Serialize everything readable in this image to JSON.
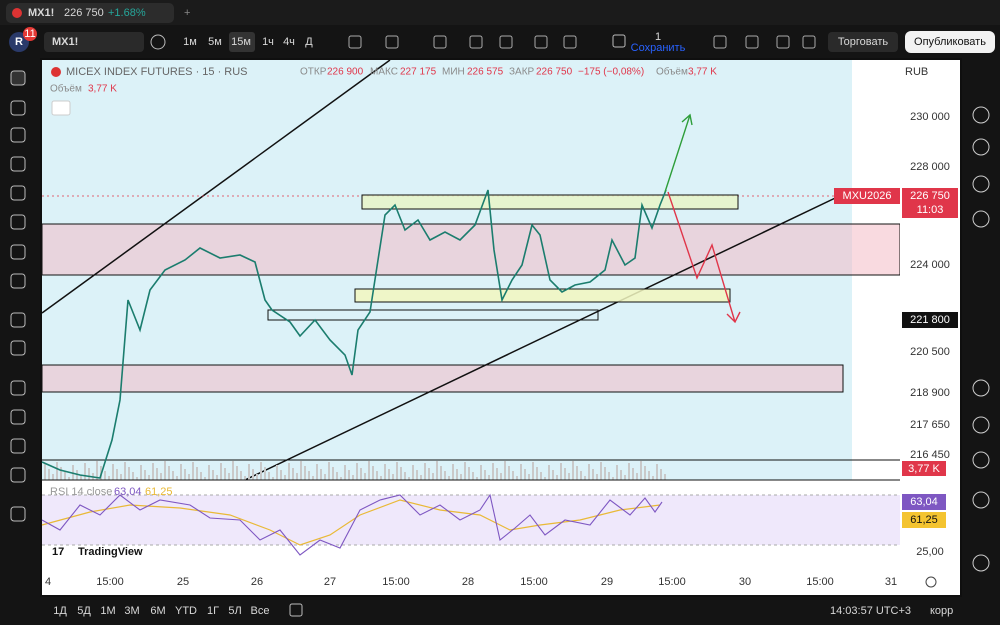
{
  "browser_tab": {
    "symbol": "MX1!",
    "price": "226 750",
    "change": "+1.68%"
  },
  "toolbar": {
    "avatar": "R",
    "badge": "11",
    "symbol": "MX1!",
    "intervals": [
      "1м",
      "5м",
      "15м",
      "1ч",
      "4ч",
      "Д"
    ],
    "layout_number": "1",
    "save": "Сохранить",
    "trade": "Торговать",
    "publish": "Опубликовать"
  },
  "legend": {
    "title": "MICEX INDEX FUTURES · 15 · RUS",
    "open_label": "ОТКР",
    "open": "226 900",
    "high_label": "МАКС",
    "high": "227 175",
    "low_label": "МИН",
    "low": "226 575",
    "close_label": "ЗАКР",
    "close": "226 750",
    "change": "−175 (−0,08%)",
    "volume_label": "Объём",
    "volume": "3,77 K",
    "volume_row_label": "Объём",
    "volume_row": "3,77 K"
  },
  "price_axis": {
    "currency": "RUB",
    "labels": [
      "230 000",
      "228 000",
      "224 000",
      "220 500",
      "218 900",
      "217 650",
      "216 450",
      "25,00"
    ],
    "last_price": "226 750",
    "countdown": "11:03",
    "marker_price": "221 800",
    "volume": "3,77 K",
    "rsi": "63,04",
    "rsi_ma": "61,25",
    "symbol_tag": "MXU2026"
  },
  "rsi": {
    "label": "RSI 14 close",
    "value": "63,04",
    "ma": "61,25"
  },
  "watermark": "TradingView",
  "time_axis": [
    "4",
    "15:00",
    "25",
    "26",
    "27",
    "15:00",
    "28",
    "15:00",
    "29",
    "15:00",
    "30",
    "15:00",
    "31"
  ],
  "bottom_bar": {
    "ranges": [
      "1Д",
      "5Д",
      "1М",
      "3М",
      "6М",
      "YTD",
      "1Г",
      "5Л",
      "Все"
    ],
    "clock": "14:03:57 UTC+3",
    "mode": "корр"
  }
}
